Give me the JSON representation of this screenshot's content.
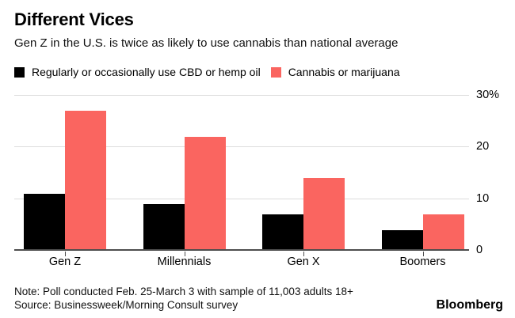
{
  "header": {
    "title": "Different Vices",
    "subtitle": "Gen Z in the U.S. is twice as likely to use cannabis than national average"
  },
  "legend": {
    "items": [
      {
        "label": "Regularly or occasionally use CBD or hemp oil",
        "color": "#000000"
      },
      {
        "label": "Cannabis or marijuana",
        "color": "#FA6560"
      }
    ]
  },
  "chart_data": {
    "type": "bar",
    "title": "Different Vices",
    "subtitle": "Gen Z in the U.S. is twice as likely to use cannabis than national average",
    "categories": [
      "Gen Z",
      "Millennials",
      "Gen X",
      "Boomers"
    ],
    "series": [
      {
        "name": "Regularly or occasionally use CBD or hemp oil",
        "color": "#000000",
        "values": [
          11,
          9,
          7,
          4
        ]
      },
      {
        "name": "Cannabis or marijuana",
        "color": "#FA6560",
        "values": [
          27,
          22,
          14,
          7
        ]
      }
    ],
    "xlabel": "",
    "ylabel": "",
    "ylim": [
      0,
      31.5
    ],
    "yticks": [
      0,
      10,
      20,
      30
    ],
    "ytick_labels": [
      "0",
      "10",
      "20",
      "30%"
    ],
    "grid": "horizontal",
    "legend_position": "top-left",
    "axis_label_side": "right"
  },
  "colors": {
    "grid": "#dcdcdc",
    "axis": "#4d4d4d",
    "accent_red": "#FA6560",
    "accent_black": "#000000"
  },
  "footer": {
    "note": "Note: Poll conducted Feb. 25-March 3 with sample of 11,003 adults 18+",
    "source": "Source: Businessweek/Morning Consult survey",
    "brand": "Bloomberg"
  }
}
